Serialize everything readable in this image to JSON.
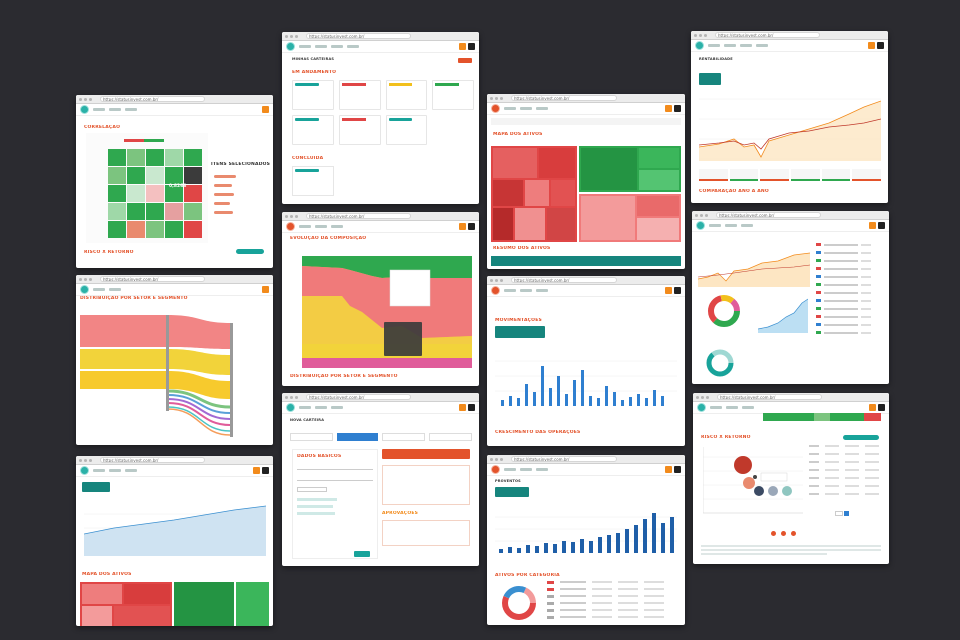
{
  "url": "https://statusinvest.com.br/",
  "windows": {
    "correlation": {
      "url": "https://statusinvest.com.br/",
      "title": "CORRELAÇÃO",
      "side_title": "ITENS SELECIONADOS",
      "heat_value": "0,8268",
      "footer_title": "RISCO X RETORNO"
    },
    "wallets": {
      "url": "https://statusinvest.com.br/",
      "section1": "EM ANDAMENTO",
      "section2": "CONCLUÍDA",
      "header": "MINHAS CARTEIRAS"
    },
    "treemap": {
      "url": "https://statusinvest.com.br/",
      "title": "MAPA DOS ATIVOS",
      "footer_title": "RESUMO DOS ATIVOS"
    },
    "performance": {
      "url": "https://statusinvest.com.br/",
      "title": "RENTABILIDADE",
      "footer_title": "COMPARAÇÃO ANO A ANO"
    },
    "sankey": {
      "url": "https://statusinvest.com.br/",
      "title": "DISTRIBUIÇÃO POR SETOR E SEGMENTO"
    },
    "composition": {
      "url": "https://statusinvest.com.br/",
      "title": "EVOLUÇÃO DA COMPOSIÇÃO",
      "footer_title": "DISTRIBUIÇÃO POR SETOR E SEGMENTO"
    },
    "movements": {
      "url": "https://statusinvest.com.br/",
      "title": "MOVIMENTAÇÕES",
      "footer_title": "CRESCIMENTO DAS OPERAÇÕES"
    },
    "dashboard": {
      "url": "https://statusinvest.com.br/"
    },
    "patrimony": {
      "url": "https://statusinvest.com.br/",
      "footer_title": "MAPA DOS ATIVOS"
    },
    "newwallet": {
      "url": "https://statusinvest.com.br/",
      "header": "NOVA CARTEIRA",
      "form_title": "DADOS BÁSICOS",
      "section": "APROVAÇÕES"
    },
    "earnings": {
      "url": "https://statusinvest.com.br/",
      "title": "PROVENTOS",
      "footer_title": "ATIVOS POR CATEGORIA"
    },
    "riskreturn": {
      "url": "https://statusinvest.com.br/",
      "title": "RISCO X RETORNO"
    }
  },
  "colors": {
    "accent": "#e3532b",
    "teal": "#18a39a",
    "orange": "#f28b1c",
    "green": "#2fa84f",
    "red": "#e04646",
    "background": "#2b2b30"
  },
  "icons": [
    "window-dot-icon",
    "logo-icon",
    "search-icon"
  ]
}
